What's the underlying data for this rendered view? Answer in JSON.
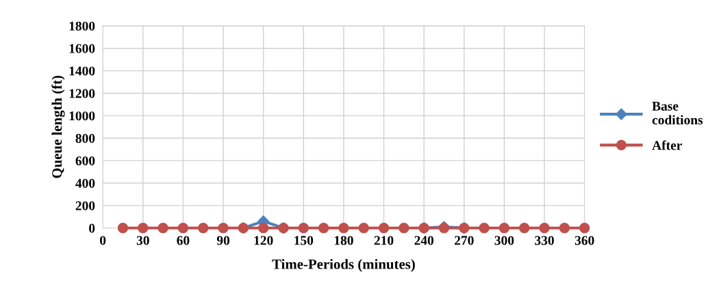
{
  "chart_data": {
    "type": "line",
    "xlabel": "Time-Periods (minutes)",
    "ylabel": "Queue length (ft)",
    "x": [
      15,
      30,
      45,
      60,
      75,
      90,
      105,
      120,
      135,
      150,
      165,
      180,
      195,
      210,
      225,
      240,
      255,
      270,
      285,
      300,
      315,
      330,
      345,
      360
    ],
    "series": [
      {
        "name": "Base coditions",
        "color": "#4f81bd",
        "marker": "diamond",
        "values": [
          null,
          null,
          null,
          null,
          null,
          null,
          0,
          60,
          0,
          null,
          null,
          null,
          null,
          null,
          null,
          0,
          10,
          0,
          null,
          null,
          null,
          null,
          null,
          null
        ]
      },
      {
        "name": "After",
        "color": "#c0504d",
        "marker": "circle",
        "values": [
          0,
          0,
          0,
          0,
          0,
          0,
          0,
          0,
          0,
          0,
          0,
          0,
          0,
          0,
          0,
          0,
          0,
          0,
          0,
          0,
          0,
          0,
          0,
          0
        ]
      }
    ],
    "xlim": [
      0,
      360
    ],
    "xticks": [
      0,
      30,
      60,
      90,
      120,
      150,
      180,
      210,
      240,
      270,
      300,
      330,
      360
    ],
    "ylim": [
      0,
      1800
    ],
    "yticks": [
      0,
      200,
      400,
      600,
      800,
      1000,
      1200,
      1400,
      1600,
      1800
    ],
    "grid": true,
    "legend": "right",
    "line_style": "solid"
  }
}
